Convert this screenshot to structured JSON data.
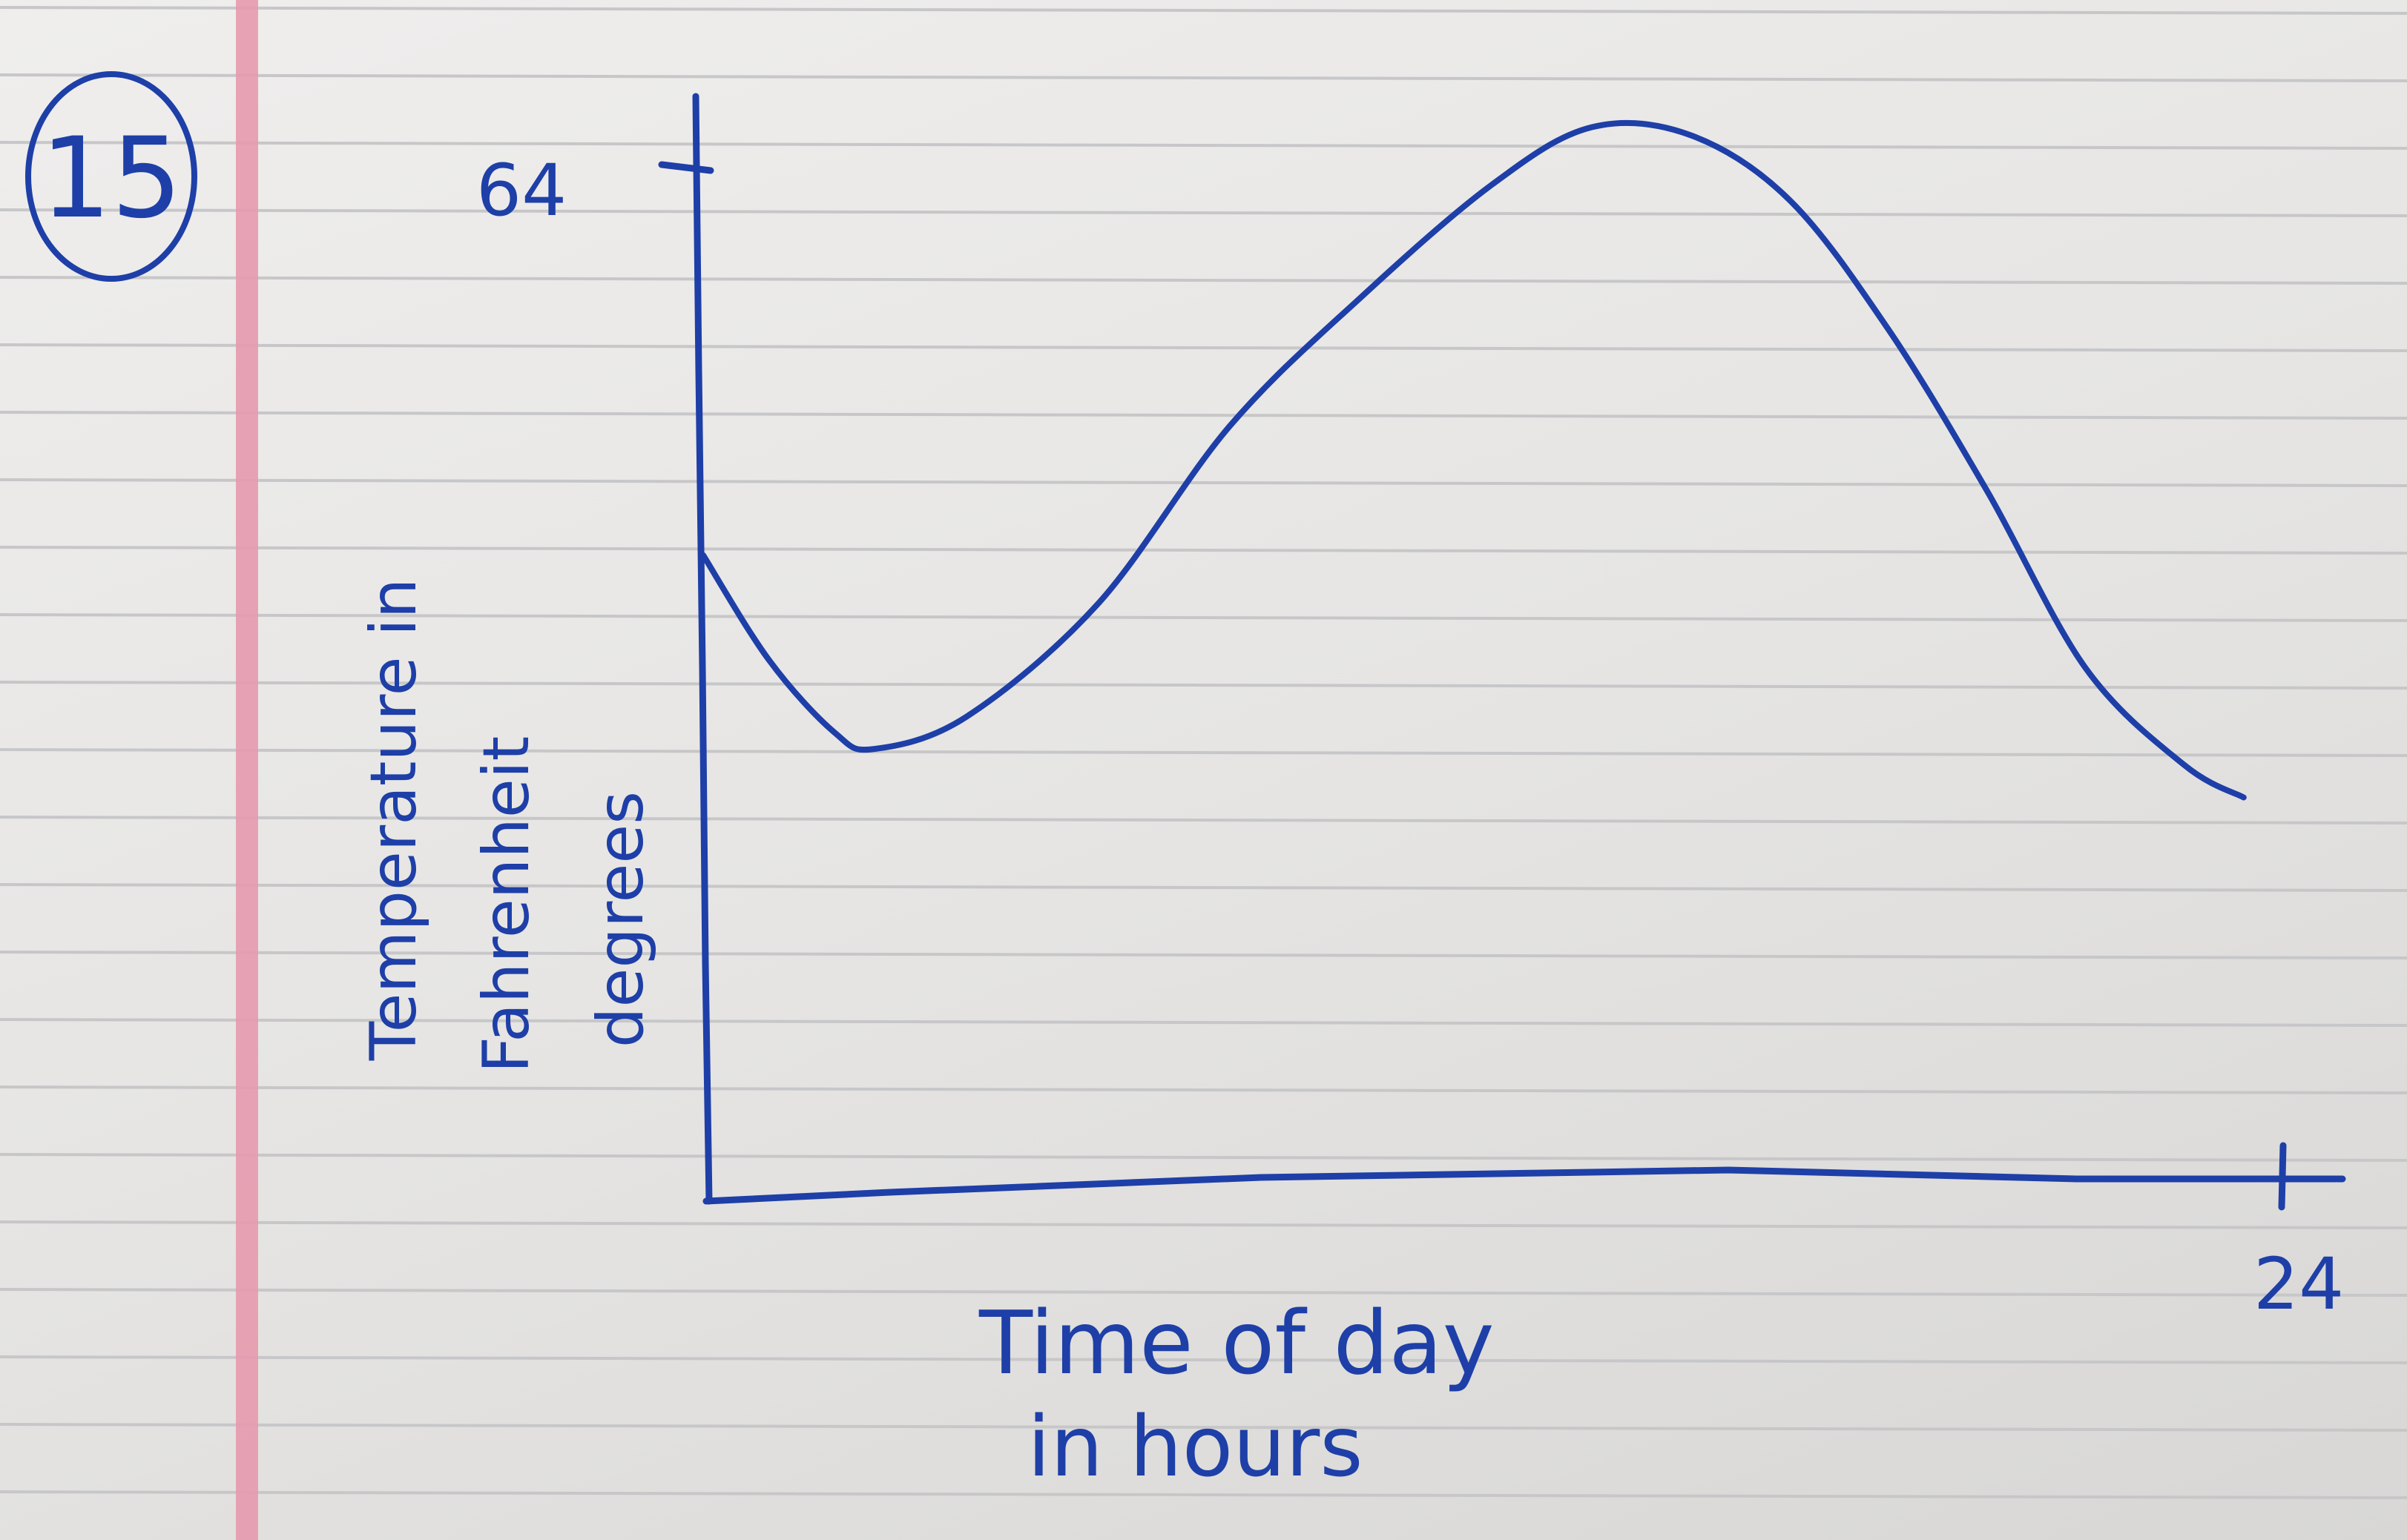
{
  "problem_number": "15",
  "colors": {
    "ink": "#1e3fa8",
    "margin_line": "#e69aae",
    "ruled_line": "#c7c7c9",
    "paper": "#e6e5e3"
  },
  "chart_data": {
    "type": "line",
    "title": "",
    "xlabel_line1": "Time of day",
    "xlabel_line2": "in hours",
    "ylabel_line1": "Temperature in",
    "ylabel_line2": "Fahrenheit",
    "ylabel_line3": "degrees",
    "xlim": [
      0,
      24
    ],
    "ylim": [
      0,
      64
    ],
    "x_tick_label": "24",
    "y_tick_label": "64",
    "grid": false,
    "legend": "none",
    "series": [
      {
        "x": [
          0,
          1,
          2,
          2.6,
          4,
          6,
          8,
          10,
          12,
          13.5,
          15,
          16.5,
          18,
          19.5,
          21,
          22.5,
          23.4
        ],
        "y": [
          40,
          33.5,
          29,
          28,
          30,
          37,
          48,
          56,
          63,
          66.5,
          66,
          62,
          54,
          44,
          33,
          27,
          25
        ]
      }
    ]
  }
}
